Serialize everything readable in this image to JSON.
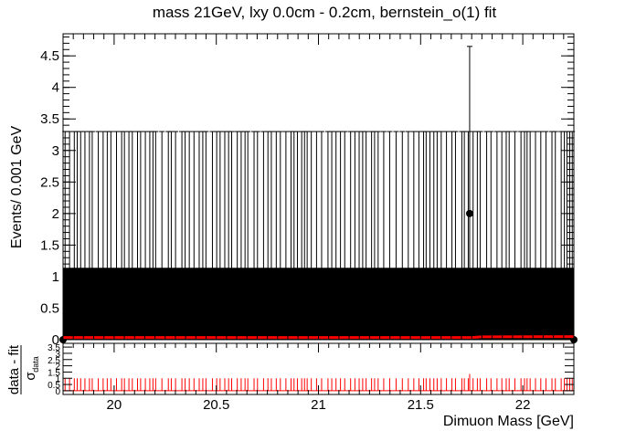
{
  "chart_data": {
    "type": "scatter",
    "title": "mass 21GeV, lxy 0.0cm - 0.2cm, bernstein_o(1) fit",
    "xlabel": "Dimuon Mass [GeV]",
    "ylabel": "Events/ 0.001 GeV",
    "xlim": [
      19.75,
      22.25
    ],
    "ylim": [
      0,
      4.85
    ],
    "x_ticks": [
      "20",
      "20.5",
      "21",
      "21.5",
      "22"
    ],
    "x_tick_values": [
      20,
      20.5,
      21,
      21.5,
      22
    ],
    "y_ticks": [
      "0",
      "0.5",
      "1",
      "1.5",
      "2",
      "2.5",
      "3",
      "3.5",
      "4",
      "4.5"
    ],
    "y_tick_values": [
      0,
      0.5,
      1,
      1.5,
      2,
      2.5,
      3,
      3.5,
      4,
      4.5
    ],
    "points_summary": {
      "bins": 2500,
      "occupied_bins_value": 1,
      "occupied_bin_error_up": 2.3,
      "occupied_bin_error_down": 1.0,
      "peak_point": {
        "x": 21.74,
        "y": 2,
        "err_up": 4.65,
        "err_down": 0.6
      }
    },
    "fit_curve": {
      "name": "",
      "color": "#ff0000",
      "x": [
        19.75,
        21.75,
        21.8,
        22.25
      ],
      "y": [
        0.035,
        0.035,
        0.045,
        0.048
      ]
    },
    "pull_panel": {
      "ylabel_top": "data - fit",
      "ylabel_bottom": "σ",
      "ylabel_sub": "data",
      "y_ticks": [
        "0",
        "0.5",
        "1",
        "1.5",
        "2",
        "2.5",
        "3",
        "3.5"
      ],
      "y_tick_values": [
        0,
        0.5,
        1,
        1.5,
        2,
        2.5,
        3,
        3.5
      ],
      "ylim": [
        -0.3,
        3.8
      ],
      "pull_value_typical": 1,
      "color": "#ff0000"
    },
    "grid": false,
    "legend": "none"
  }
}
